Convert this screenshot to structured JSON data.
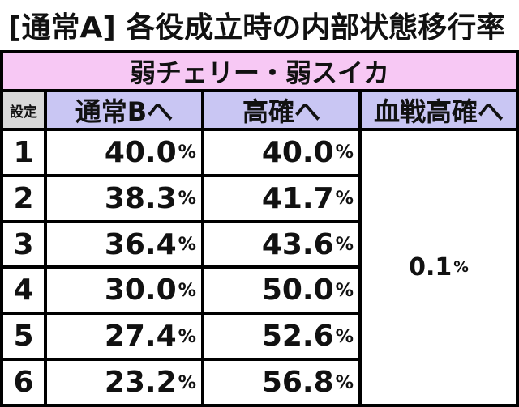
{
  "header": {
    "title": "[通常A] 各役成立時の内部状態移行率"
  },
  "table": {
    "caption": "弱チェリー・弱スイカ",
    "columns": [
      "設定",
      "通常Bへ",
      "高確へ",
      "血戦高確へ"
    ],
    "rows": [
      [
        "1",
        "40.0%",
        "40.0%"
      ],
      [
        "2",
        "38.3%",
        "41.7%"
      ],
      [
        "3",
        "36.4%",
        "43.6%"
      ],
      [
        "4",
        "30.0%",
        "50.0%"
      ],
      [
        "5",
        "27.4%",
        "52.6%"
      ],
      [
        "6",
        "23.2%",
        "56.8%"
      ]
    ],
    "merged_value": "0.1%"
  }
}
